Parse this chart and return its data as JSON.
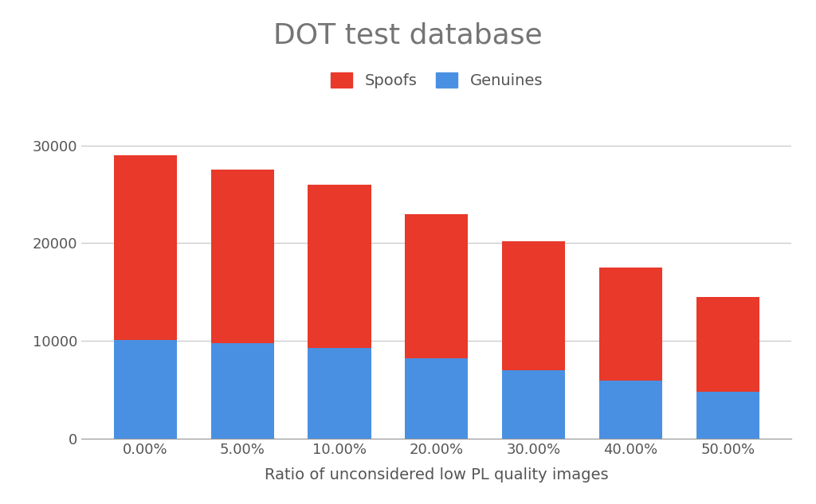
{
  "categories": [
    "0.00%",
    "5.00%",
    "10.00%",
    "20.00%",
    "30.00%",
    "40.00%",
    "50.00%"
  ],
  "genuines": [
    10050,
    9800,
    9300,
    8200,
    7000,
    5900,
    4800
  ],
  "totals": [
    29000,
    27500,
    26000,
    23000,
    20200,
    17500,
    14500
  ],
  "spoof_color": "#E8392A",
  "genuine_color": "#4A90E2",
  "background_color": "#FFFFFF",
  "grid_color": "#CCCCCC",
  "title": "DOT test database",
  "title_color": "#757575",
  "xlabel": "Ratio of unconsidered low PL quality images",
  "xlabel_color": "#555555",
  "tick_color": "#555555",
  "ylim": [
    0,
    32000
  ],
  "yticks": [
    0,
    10000,
    20000,
    30000
  ],
  "title_fontsize": 26,
  "xlabel_fontsize": 14,
  "tick_fontsize": 13,
  "legend_fontsize": 14,
  "bar_width": 0.65
}
